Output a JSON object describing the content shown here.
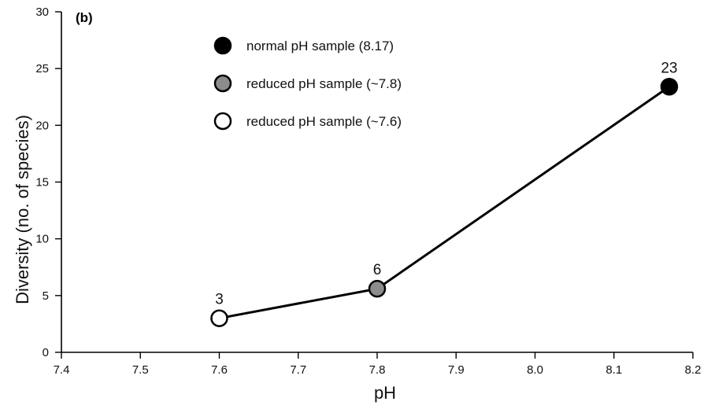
{
  "chart_data": {
    "type": "line",
    "panel_label": "(b)",
    "xlabel": "pH",
    "ylabel": "Diversity  (no. of species)",
    "xlim": [
      7.4,
      8.2
    ],
    "ylim": [
      0,
      30
    ],
    "x_ticks": [
      "7.4",
      "7.5",
      "7.6",
      "7.7",
      "7.8",
      "7.9",
      "8.0",
      "8.1",
      "8.2"
    ],
    "y_ticks": [
      "0",
      "5",
      "10",
      "15",
      "20",
      "25",
      "30"
    ],
    "grid": false,
    "legend_position": "top-left",
    "series": [
      {
        "points": [
          {
            "x": 7.6,
            "y": 3,
            "label": "3",
            "legend_index": 2
          },
          {
            "x": 7.8,
            "y": 5.6,
            "label": "6",
            "legend_index": 1
          },
          {
            "x": 8.17,
            "y": 23.4,
            "label": "23",
            "legend_index": 0
          }
        ]
      }
    ],
    "legend": [
      {
        "label": "normal pH sample (8.17)",
        "fill": "#000000"
      },
      {
        "label": "reduced pH sample (~7.8)",
        "fill": "#8c8c8c"
      },
      {
        "label": "reduced pH sample (~7.6)",
        "fill": "#ffffff"
      }
    ],
    "line_color": "#000000"
  }
}
